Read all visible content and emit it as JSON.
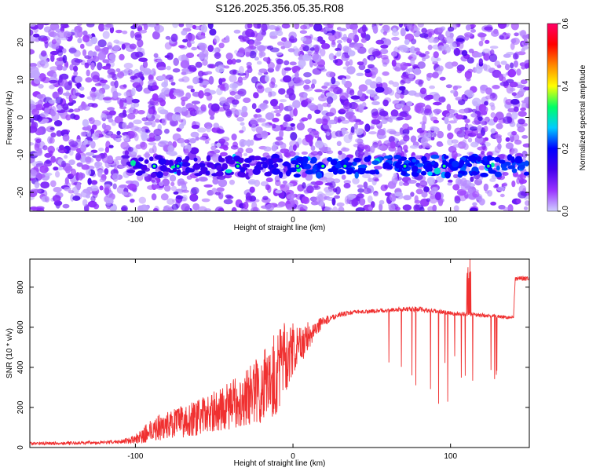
{
  "title": "S126.2025.356.05.35.R08",
  "colors": {
    "snr_line": "#f03030",
    "axis": "#000000"
  },
  "chart_data": [
    {
      "type": "heatmap",
      "name": "spectrogram",
      "xlabel": "Height of straight line (km)",
      "ylabel": "Frequency (Hz)",
      "xlim": [
        -167,
        150
      ],
      "ylim": [
        -25,
        25
      ],
      "xticks": [
        -100,
        0,
        100
      ],
      "yticks": [
        -20,
        -10,
        0,
        10,
        20
      ],
      "colorbar": {
        "label": "Normalized spectral amplitude",
        "range": [
          0.0,
          0.6
        ],
        "ticks": [
          0.0,
          0.2,
          0.4,
          0.6
        ],
        "colormap": [
          "#d0d0ff",
          "#9933ff",
          "#4400ee",
          "#0000ff",
          "#00ccff",
          "#00ff66",
          "#ffff00",
          "#ff8800",
          "#ff0000",
          "#ff0066"
        ]
      },
      "signal_band_hz": -13
    },
    {
      "type": "line",
      "name": "snr",
      "xlabel": "Height of straight line (km)",
      "ylabel": "SNR (10 * v/v)",
      "xlim": [
        -167,
        150
      ],
      "ylim": [
        0,
        940
      ],
      "xticks": [
        -100,
        0,
        100
      ],
      "yticks": [
        0,
        200,
        400,
        600,
        800
      ],
      "series": [
        {
          "x": [
            -167,
            -140,
            -120,
            -110,
            -100,
            -95,
            -90,
            -80,
            -70,
            -60,
            -50,
            -40,
            -30,
            -20,
            -15,
            -10,
            -8,
            -5,
            0,
            5,
            10,
            15,
            20,
            25,
            30,
            40,
            50,
            60,
            70,
            80,
            90,
            100,
            110,
            120,
            130,
            135,
            140,
            141,
            145,
            150
          ],
          "y": [
            20,
            22,
            25,
            30,
            40,
            60,
            90,
            110,
            130,
            150,
            180,
            210,
            250,
            300,
            340,
            380,
            420,
            450,
            470,
            510,
            560,
            600,
            630,
            650,
            665,
            675,
            680,
            685,
            690,
            690,
            680,
            670,
            665,
            660,
            655,
            650,
            650,
            840,
            845,
            840
          ],
          "noise": [
            8,
            8,
            8,
            10,
            20,
            40,
            60,
            70,
            80,
            90,
            100,
            120,
            140,
            180,
            200,
            220,
            220,
            180,
            120,
            100,
            70,
            40,
            25,
            15,
            12,
            10,
            10,
            10,
            12,
            12,
            12,
            10,
            10,
            10,
            8,
            8,
            8,
            10,
            12,
            12
          ]
        }
      ]
    }
  ]
}
